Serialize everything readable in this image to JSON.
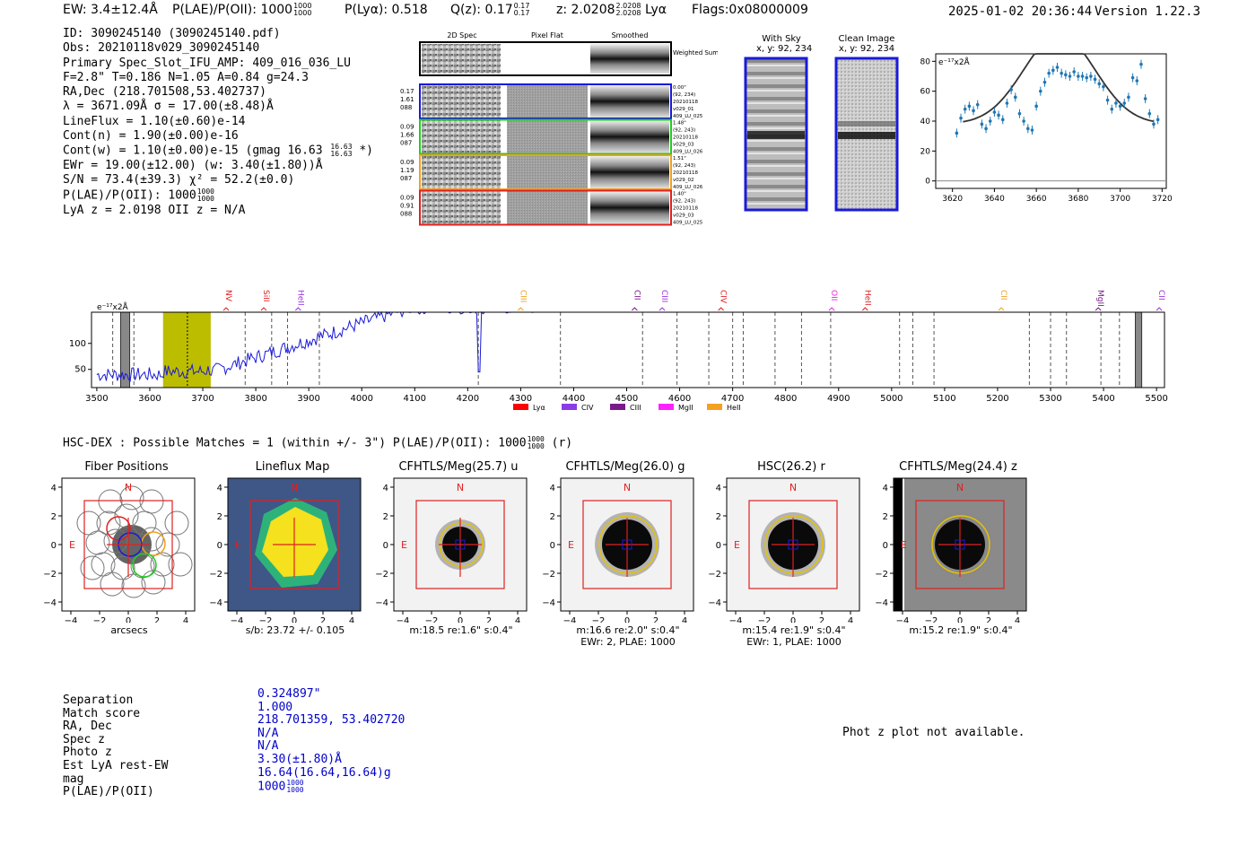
{
  "header": {
    "ew": "EW: 3.4±12.4Å",
    "plae": "P(LAE)/P(OII): 1000",
    "plae_hi": "1000",
    "plae_lo": "1000",
    "plya": "P(Lyα): 0.518",
    "qz": "Q(z): 0.17",
    "qz_hi": "0.17",
    "qz_lo": "0.17",
    "z": "z: 2.0208",
    "z_hi": "2.0208",
    "z_lo": "2.0208",
    "z_line": "Lyα",
    "flags": "Flags:0x08000009",
    "datetime": "2025-01-02 20:36:44",
    "version": "Version 1.22.3"
  },
  "info": {
    "l1": "ID: 3090245140 (3090245140.pdf)",
    "l2": "Obs: 20210118v029_3090245140",
    "l3": "Primary Spec_Slot_IFU_AMP: 409_016_036_LU",
    "l4": "F=2.8\"  T=0.186  N=1.05  A=0.84  g=24.3",
    "l5": "RA,Dec (218.701508,53.402737)",
    "l6": "λ = 3671.09Å  σ = 17.00(±8.48)Å",
    "l7": "LineFlux = 1.10(±0.60)e-14",
    "l8": "Cont(n) = 1.90(±0.00)e-16",
    "l9": "Cont(w) = 1.10(±0.00)e-15 (gmag 16.63",
    "l9_hi": "16.63",
    "l9_lo": "16.63",
    "l9_end": "*)",
    "l10": "EWr = 19.00(±12.00) (w: 3.40(±1.80))Å",
    "l11": "S/N = 73.4(±39.3)  χ² = 52.2(±0.0)",
    "l12": "P(LAE)/P(OII): 1000",
    "l12_hi": "1000",
    "l12_lo": "1000",
    "l13": "LyA z = 2.0198  OII z = N/A"
  },
  "cutouts": {
    "col1": "2D Spec",
    "col2": "Pixel Flat",
    "col3": "Smoothed",
    "weighted": "Weighted Sum",
    "rows": [
      {
        "left": [
          "0.17",
          "1.61",
          "088"
        ],
        "right": [
          "0.00\"",
          "(92, 234)",
          "20210118",
          "v029_01",
          "409_LU_025"
        ],
        "color": "#1a1ad9"
      },
      {
        "left": [
          "0.09",
          "1.66",
          "087"
        ],
        "right": [
          "1.48\"",
          "(92, 243)",
          "20210118",
          "v029_03",
          "409_LU_026"
        ],
        "color": "#22cc22"
      },
      {
        "left": [
          "0.09",
          "1.19",
          "087"
        ],
        "right": [
          "1.51\"",
          "(92, 243)",
          "20210118",
          "v029_02",
          "409_LU_026"
        ],
        "color": "#f0a020"
      },
      {
        "left": [
          "0.09",
          "0.91",
          "088"
        ],
        "right": [
          "1.40\"",
          "(92, 243)",
          "20210118",
          "v029_03",
          "409_LU_025"
        ],
        "color": "#e02020"
      }
    ]
  },
  "sky": {
    "with_sky": "With Sky",
    "with_sky_xy": "x, y: 92, 234",
    "clean": "Clean Image",
    "clean_xy": "x, y: 92, 234"
  },
  "zoom_chart": {
    "ylabel": "e⁻¹⁷x2Å",
    "xticks": [
      "3620",
      "3640",
      "3660",
      "3680",
      "3700",
      "3720"
    ],
    "yticks": [
      "0",
      "20",
      "40",
      "60",
      "80"
    ]
  },
  "spectrum": {
    "ylabel": "e⁻¹⁷x2Å",
    "lines": [
      {
        "label": "NV",
        "color": "#e02020",
        "wl": 3744
      },
      {
        "label": "SiII",
        "color": "#e02020",
        "wl": 3815
      },
      {
        "label": "HeII",
        "color": "#9933dd",
        "wl": 3880
      },
      {
        "label": "CIII",
        "color": "#f0a020",
        "wl": 4300
      },
      {
        "label": "CII",
        "color": "#7a1a8a",
        "wl": 4515
      },
      {
        "label": "CIII",
        "color": "#9933dd",
        "wl": 4567
      },
      {
        "label": "CIV",
        "color": "#e02020",
        "wl": 4678
      },
      {
        "label": "OII",
        "color": "#ee22ee",
        "wl": 4887
      },
      {
        "label": "HeII",
        "color": "#e02020",
        "wl": 4950
      },
      {
        "label": "CII",
        "color": "#f0a020",
        "wl": 5207
      },
      {
        "label": "MgII",
        "color": "#7a1a8a",
        "wl": 5390
      },
      {
        "label": "CII",
        "color": "#9933dd",
        "wl": 5505
      }
    ],
    "xticks": [
      "3500",
      "3600",
      "3700",
      "3800",
      "3900",
      "4000",
      "4100",
      "4200",
      "4300",
      "4400",
      "4500",
      "4600",
      "4700",
      "4800",
      "4900",
      "5000",
      "5100",
      "5200",
      "5300",
      "5400",
      "5500"
    ],
    "yticks": [
      "50",
      "100"
    ],
    "legend": [
      {
        "label": "Lyα",
        "color": "#ff0000"
      },
      {
        "label": "CIV",
        "color": "#8a3ce6"
      },
      {
        "label": "CIII",
        "color": "#7a1a8a"
      },
      {
        "label": "MgII",
        "color": "#ff22ff"
      },
      {
        "label": "HeII",
        "color": "#f5a020"
      }
    ]
  },
  "hsc": {
    "title": "HSC-DEX : Possible Matches = 1 (within +/- 3\")  P(LAE)/P(OII): 1000",
    "title_hi": "1000",
    "title_lo": "1000",
    "title_end": "(r)"
  },
  "panels": [
    {
      "title": "Fiber Positions",
      "sub1": "arcsecs",
      "sub2": ""
    },
    {
      "title": "Lineflux Map",
      "sub1": "s/b: 23.72 +/- 0.105",
      "sub2": ""
    },
    {
      "title": "CFHTLS/Meg(25.7) u",
      "sub1": "m:18.5  re:1.6\"  s:0.4\"",
      "sub2": ""
    },
    {
      "title": "CFHTLS/Meg(26.0) g",
      "sub1": "m:16.6  re:2.0\"  s:0.4\"",
      "sub2": "EWr: 2, PLAE: 1000"
    },
    {
      "title": "HSC(26.2) r",
      "sub1": "m:15.4  re:1.9\"  s:0.4\"",
      "sub2": "EWr: 1, PLAE: 1000"
    },
    {
      "title": "CFHTLS/Meg(24.4) z",
      "sub1": "m:15.2  re:1.9\"  s:0.4\"",
      "sub2": ""
    }
  ],
  "panel_labels": {
    "north": "N",
    "east": "E",
    "xticks": [
      "−4",
      "−2",
      "0",
      "2",
      "4"
    ],
    "yticks": [
      "4",
      "2",
      "0",
      "−2",
      "−4"
    ]
  },
  "match_table": {
    "labels": [
      "Separation",
      "Match score",
      "RA, Dec",
      "Spec z",
      "Photo z",
      "Est LyA rest-EW",
      "mag",
      "P(LAE)/P(OII)"
    ],
    "values": [
      "0.324897\"",
      "1.000",
      "218.701359, 53.402720",
      "N/A",
      "N/A",
      "3.30(±1.80)Å",
      "16.64(16.64,16.64)g",
      "1000"
    ],
    "plae_hi": "1000",
    "plae_lo": "1000"
  },
  "photz": "Phot z plot not available.",
  "chart_data": [
    {
      "type": "scatter",
      "ylabel": "e⁻¹⁷x2Å",
      "xlim": [
        3612,
        3722
      ],
      "ylim": [
        -5,
        85
      ],
      "x": [
        3622,
        3624,
        3626,
        3628,
        3630,
        3632,
        3634,
        3636,
        3638,
        3640,
        3642,
        3644,
        3646,
        3648,
        3650,
        3652,
        3654,
        3656,
        3658,
        3660,
        3662,
        3664,
        3666,
        3668,
        3670,
        3672,
        3674,
        3676,
        3678,
        3680,
        3682,
        3684,
        3686,
        3688,
        3690,
        3692,
        3694,
        3696,
        3698,
        3700,
        3702,
        3704,
        3706,
        3708,
        3710,
        3712,
        3714,
        3716,
        3718
      ],
      "y": [
        32,
        42,
        48,
        50,
        47,
        51,
        38,
        35,
        40,
        46,
        44,
        41,
        52,
        61,
        56,
        45,
        40,
        35,
        34,
        50,
        60,
        66,
        72,
        74,
        76,
        72,
        71,
        70,
        73,
        70,
        70,
        69,
        70,
        68,
        65,
        63,
        54,
        48,
        52,
        50,
        52,
        56,
        69,
        67,
        78,
        55,
        45,
        38,
        41
      ]
    },
    {
      "type": "line",
      "ylabel": "e⁻¹⁷x2Å",
      "xlim": [
        3490,
        5515
      ],
      "ylim": [
        15,
        160
      ],
      "highlight_band": [
        3625,
        3715
      ]
    }
  ]
}
